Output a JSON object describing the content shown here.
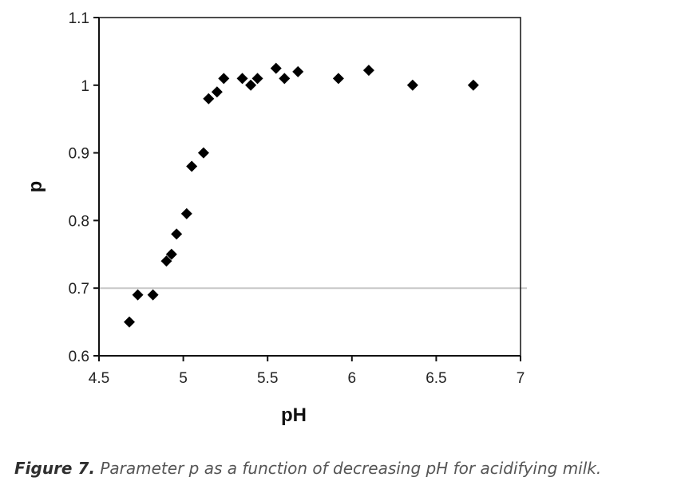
{
  "chart_data": {
    "type": "scatter",
    "title": "",
    "xlabel": "pH",
    "ylabel": "p",
    "xlim": [
      4.5,
      7
    ],
    "ylim": [
      0.6,
      1.1
    ],
    "x_ticks": [
      4.5,
      5,
      5.5,
      6,
      6.5,
      7
    ],
    "x_tick_labels": [
      "4.5",
      "5",
      "5.5",
      "6",
      "6.5",
      "7"
    ],
    "y_ticks": [
      0.6,
      0.7,
      0.8,
      0.9,
      1,
      1.1
    ],
    "y_tick_labels": [
      "0.6",
      "0.7",
      "0.8",
      "0.9",
      "1",
      "1.1"
    ],
    "reference_line_y": 0.7,
    "marker": "diamond",
    "marker_color": "#000000",
    "grid": false,
    "points": [
      {
        "x": 4.68,
        "y": 0.65
      },
      {
        "x": 4.73,
        "y": 0.69
      },
      {
        "x": 4.82,
        "y": 0.69
      },
      {
        "x": 4.9,
        "y": 0.74
      },
      {
        "x": 4.93,
        "y": 0.75
      },
      {
        "x": 4.96,
        "y": 0.78
      },
      {
        "x": 5.02,
        "y": 0.81
      },
      {
        "x": 5.05,
        "y": 0.88
      },
      {
        "x": 5.12,
        "y": 0.9
      },
      {
        "x": 5.15,
        "y": 0.98
      },
      {
        "x": 5.2,
        "y": 0.99
      },
      {
        "x": 5.24,
        "y": 1.01
      },
      {
        "x": 5.35,
        "y": 1.01
      },
      {
        "x": 5.4,
        "y": 1.0
      },
      {
        "x": 5.44,
        "y": 1.01
      },
      {
        "x": 5.55,
        "y": 1.025
      },
      {
        "x": 5.6,
        "y": 1.01
      },
      {
        "x": 5.68,
        "y": 1.02
      },
      {
        "x": 5.92,
        "y": 1.01
      },
      {
        "x": 6.1,
        "y": 1.022
      },
      {
        "x": 6.36,
        "y": 1.0
      },
      {
        "x": 6.72,
        "y": 1.0
      }
    ]
  },
  "caption": {
    "label": "Figure 7.",
    "text": " Parameter p as a function of decreasing pH for acidifying milk."
  },
  "colors": {
    "axis": "#111111",
    "reference_line": "#c8c8c8",
    "caption_label": "#2f2f2f",
    "caption_text": "#555555"
  }
}
